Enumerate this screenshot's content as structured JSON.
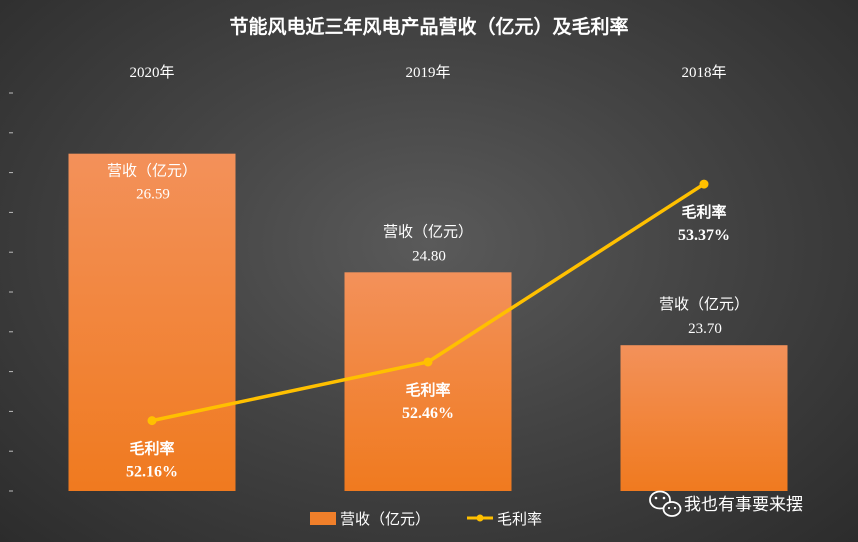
{
  "chart_data": {
    "type": "bar",
    "title": "节能风电近三年风电产品营收（亿元）及毛利率",
    "categories": [
      "2020年",
      "2019年",
      "2018年"
    ],
    "series": [
      {
        "name": "营收（亿元）",
        "type": "bar",
        "values": [
          26.59,
          24.8,
          23.7
        ],
        "value_labels": [
          "26.59",
          "24.80",
          "23.70"
        ],
        "color": "#f07f2a"
      },
      {
        "name": "毛利率",
        "type": "line",
        "values": [
          52.16,
          52.46,
          53.37
        ],
        "value_labels": [
          "52.16%",
          "52.46%",
          "53.37%"
        ],
        "unit": "%",
        "color": "#ffc000"
      }
    ],
    "bar_ylim": [
      21.5,
      27.4
    ],
    "line_ylim": [
      51.8,
      53.8
    ],
    "legend_position": "bottom",
    "grid": false,
    "xaxis_position": "top"
  },
  "watermark": "我也有事要来摆"
}
